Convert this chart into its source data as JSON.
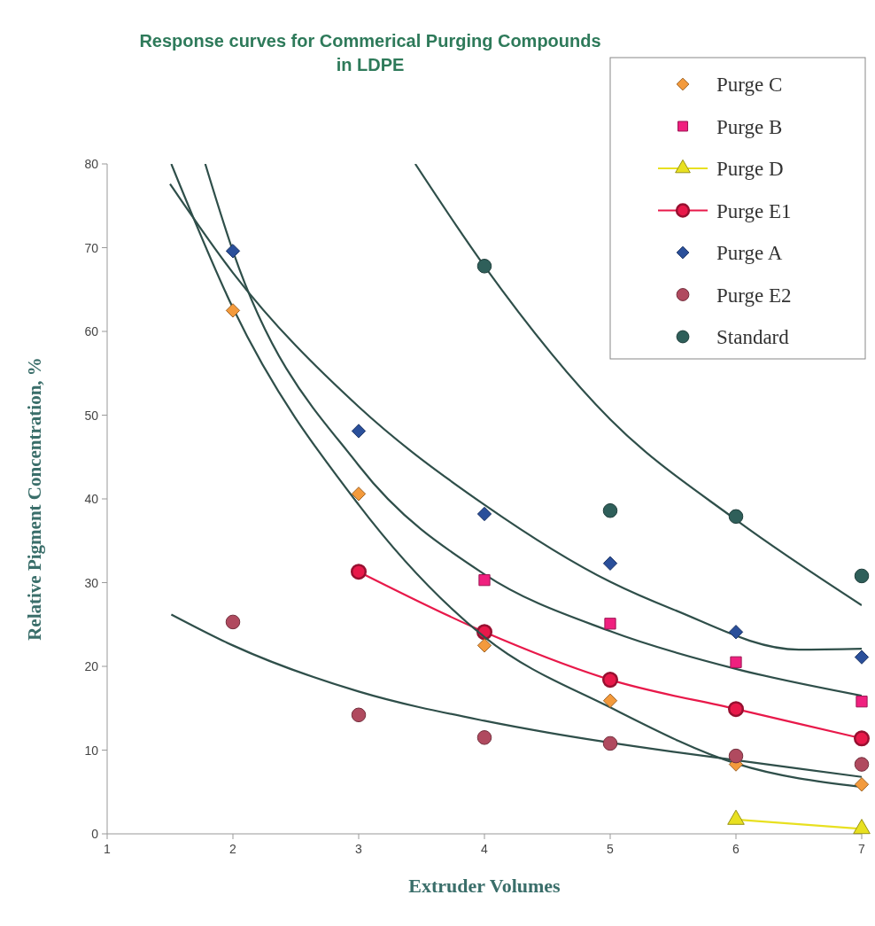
{
  "chart_data": {
    "type": "scatter",
    "title": "Response curves for Commerical Purging Compounds\nin LDPE",
    "xlabel": "Extruder Volumes",
    "ylabel": "Relative Pigment Concentration, %",
    "xlim": [
      1,
      7
    ],
    "xticks": [
      1,
      2,
      3,
      4,
      5,
      6,
      7
    ],
    "ylim": [
      0,
      80
    ],
    "yticks": [
      0,
      10,
      20,
      30,
      40,
      50,
      60,
      70,
      80
    ],
    "grid": false,
    "legend": "top right",
    "series": [
      {
        "name": "Purge C",
        "marker": "diamond",
        "color": "#f39a3c",
        "x": [
          2,
          3,
          4,
          5,
          6,
          7
        ],
        "values": [
          62.5,
          40.6,
          22.5,
          15.9,
          8.3,
          5.9
        ]
      },
      {
        "name": "Purge B",
        "marker": "square",
        "color": "#f0207f",
        "x": [
          4,
          5,
          6,
          7
        ],
        "values": [
          30.3,
          25.1,
          20.5,
          15.8
        ]
      },
      {
        "name": "Purge D",
        "type": "line",
        "marker": "triangle",
        "color": "#e8e020",
        "x": [
          6,
          7
        ],
        "values": [
          1.7,
          0.6
        ]
      },
      {
        "name": "Purge E1",
        "type": "line",
        "marker": "circle",
        "color": "#e8194a",
        "x": [
          3,
          4,
          5,
          6,
          7
        ],
        "values": [
          31.3,
          24.1,
          18.4,
          14.9,
          11.4
        ]
      },
      {
        "name": "Purge A",
        "marker": "diamond",
        "color": "#2a4f9a",
        "x": [
          2,
          3,
          4,
          5,
          6,
          7
        ],
        "values": [
          69.6,
          48.1,
          38.2,
          32.3,
          24.1,
          21.1
        ]
      },
      {
        "name": "Purge E2",
        "marker": "circle",
        "color": "#b04a5f",
        "x": [
          2,
          3,
          4,
          5,
          6,
          7
        ],
        "values": [
          25.3,
          14.2,
          11.5,
          10.8,
          9.3,
          8.3
        ]
      },
      {
        "name": "Standard",
        "marker": "circle",
        "color": "#2f5f5a",
        "x": [
          4,
          5,
          6,
          7
        ],
        "values": [
          67.8,
          38.6,
          37.9,
          30.8
        ]
      },
      {
        "type": "line",
        "marker": "none",
        "color": "#2f4f4a",
        "x": [
          1.51,
          2,
          3,
          4,
          5,
          6,
          7
        ],
        "values": [
          80,
          62.8,
          39.3,
          23.5,
          15.1,
          8.4,
          5.6
        ]
      },
      {
        "type": "line",
        "marker": "none",
        "color": "#2f4f4a",
        "x": [
          1.78,
          2,
          3,
          4,
          5,
          6,
          7
        ],
        "values": [
          80,
          69.6,
          44,
          31,
          24.2,
          19.7,
          16.5
        ]
      },
      {
        "type": "line",
        "marker": "none",
        "color": "#2f4f4a",
        "x": [
          1.5,
          2,
          3,
          4,
          5,
          5.5,
          6.5,
          7
        ],
        "values": [
          77.6,
          67,
          51,
          39.3,
          30.1,
          26.8,
          22,
          22.1
        ]
      },
      {
        "type": "line",
        "marker": "none",
        "color": "#2f4f4a",
        "x": [
          1.51,
          2,
          3,
          4,
          4.5,
          5.5,
          6,
          7
        ],
        "values": [
          26.2,
          22.5,
          17,
          13.5,
          12.1,
          9.8,
          8.8,
          6.8
        ]
      },
      {
        "type": "line",
        "marker": "none",
        "color": "#2f4f4a",
        "x": [
          3.45,
          4,
          5,
          6,
          7
        ],
        "values": [
          80,
          67.8,
          49.5,
          37.5,
          27.3
        ]
      }
    ]
  }
}
